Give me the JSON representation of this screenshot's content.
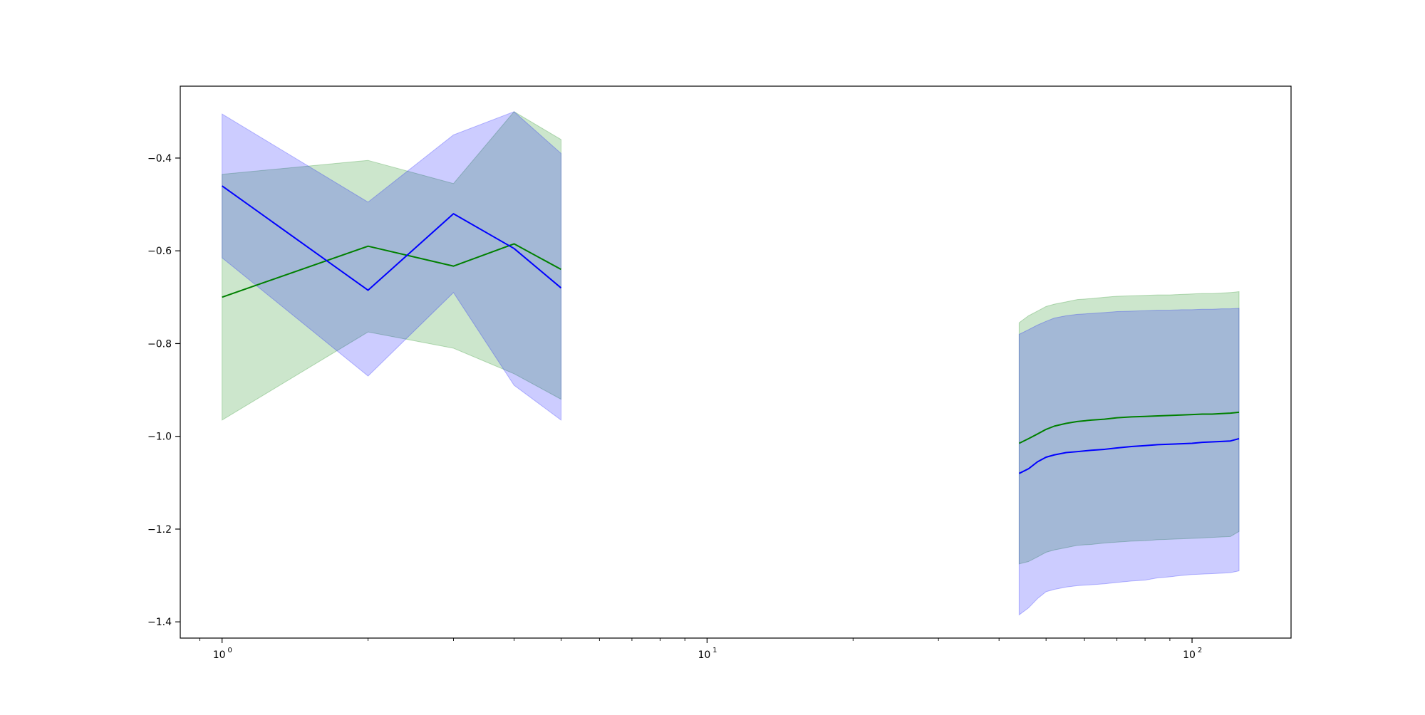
{
  "chart_data": {
    "type": "line",
    "title": "",
    "xlabel": "",
    "ylabel": "",
    "xscale": "log",
    "xlim": [
      0.82,
      160
    ],
    "ylim": [
      -1.435,
      -0.245
    ],
    "grid": false,
    "x_ticks": [
      {
        "value": 1,
        "base": "10",
        "exp": "0"
      },
      {
        "value": 10,
        "base": "10",
        "exp": "1"
      },
      {
        "value": 100,
        "base": "10",
        "exp": "2"
      }
    ],
    "y_ticks": [
      {
        "value": -0.4,
        "label": "−0.4"
      },
      {
        "value": -0.6,
        "label": "−0.6"
      },
      {
        "value": -0.8,
        "label": "−0.8"
      },
      {
        "value": -1.0,
        "label": "−1.0"
      },
      {
        "value": -1.2,
        "label": "−1.2"
      },
      {
        "value": -1.4,
        "label": "−1.4"
      }
    ],
    "series": [
      {
        "color": "#008000",
        "band_color": "#008000",
        "band_opacity": 0.2,
        "segments": [
          {
            "x": [
              1,
              2,
              3,
              4,
              5
            ],
            "y": [
              -0.7,
              -0.59,
              -0.633,
              -0.585,
              -0.64
            ],
            "lower": [
              -0.965,
              -0.775,
              -0.81,
              -0.865,
              -0.92
            ],
            "upper": [
              -0.435,
              -0.405,
              -0.455,
              -0.3,
              -0.36
            ]
          },
          {
            "x": [
              44,
              46,
              48,
              50,
              52,
              55,
              58,
              62,
              66,
              70,
              75,
              80,
              85,
              90,
              95,
              100,
              105,
              110,
              115,
              120,
              125
            ],
            "y": [
              -1.015,
              -1.005,
              -0.995,
              -0.985,
              -0.978,
              -0.972,
              -0.968,
              -0.965,
              -0.963,
              -0.96,
              -0.958,
              -0.957,
              -0.956,
              -0.955,
              -0.954,
              -0.953,
              -0.952,
              -0.952,
              -0.951,
              -0.95,
              -0.948
            ],
            "lower": [
              -1.275,
              -1.27,
              -1.26,
              -1.25,
              -1.245,
              -1.24,
              -1.235,
              -1.233,
              -1.23,
              -1.228,
              -1.226,
              -1.225,
              -1.223,
              -1.222,
              -1.221,
              -1.22,
              -1.219,
              -1.218,
              -1.217,
              -1.216,
              -1.205
            ],
            "upper": [
              -0.755,
              -0.74,
              -0.73,
              -0.72,
              -0.715,
              -0.71,
              -0.705,
              -0.703,
              -0.7,
              -0.698,
              -0.697,
              -0.696,
              -0.695,
              -0.695,
              -0.694,
              -0.693,
              -0.692,
              -0.692,
              -0.691,
              -0.69,
              -0.688
            ]
          }
        ]
      },
      {
        "color": "#0000ff",
        "band_color": "#0000ff",
        "band_opacity": 0.2,
        "segments": [
          {
            "x": [
              1,
              2,
              3,
              4,
              5
            ],
            "y": [
              -0.46,
              -0.685,
              -0.52,
              -0.595,
              -0.68
            ],
            "lower": [
              -0.615,
              -0.87,
              -0.69,
              -0.89,
              -0.965
            ],
            "upper": [
              -0.305,
              -0.495,
              -0.35,
              -0.3,
              -0.39
            ]
          },
          {
            "x": [
              44,
              46,
              48,
              50,
              52,
              55,
              58,
              62,
              66,
              70,
              75,
              80,
              85,
              90,
              95,
              100,
              105,
              110,
              115,
              120,
              125
            ],
            "y": [
              -1.08,
              -1.07,
              -1.055,
              -1.045,
              -1.04,
              -1.035,
              -1.033,
              -1.03,
              -1.028,
              -1.025,
              -1.022,
              -1.02,
              -1.018,
              -1.017,
              -1.016,
              -1.015,
              -1.013,
              -1.012,
              -1.011,
              -1.01,
              -1.005
            ],
            "lower": [
              -1.385,
              -1.37,
              -1.35,
              -1.335,
              -1.33,
              -1.325,
              -1.322,
              -1.32,
              -1.318,
              -1.315,
              -1.312,
              -1.31,
              -1.305,
              -1.303,
              -1.3,
              -1.298,
              -1.297,
              -1.296,
              -1.295,
              -1.294,
              -1.29
            ],
            "upper": [
              -0.78,
              -0.77,
              -0.76,
              -0.752,
              -0.745,
              -0.74,
              -0.737,
              -0.735,
              -0.733,
              -0.731,
              -0.73,
              -0.729,
              -0.728,
              -0.728,
              -0.727,
              -0.727,
              -0.726,
              -0.726,
              -0.725,
              -0.725,
              -0.724
            ]
          }
        ]
      }
    ]
  }
}
